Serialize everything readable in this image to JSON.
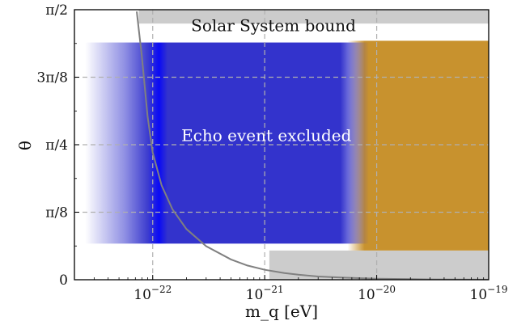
{
  "chart_data": {
    "type": "area",
    "title": "",
    "xlabel": "m_q [eV]",
    "ylabel": "θ",
    "xscale": "log",
    "xlim": [
      2e-23,
      1e-19
    ],
    "ylim": [
      0,
      1.5708
    ],
    "x_ticks": [
      {
        "value": 1e-22,
        "label": "10^-22"
      },
      {
        "value": 1e-21,
        "label": "10^-21"
      },
      {
        "value": 1e-20,
        "label": "10^-20"
      },
      {
        "value": 1e-19,
        "label": "10^-19"
      }
    ],
    "y_ticks": [
      {
        "value": 0,
        "label": "0"
      },
      {
        "value": 0.3927,
        "label": "π/8"
      },
      {
        "value": 0.7854,
        "label": "π/4"
      },
      {
        "value": 1.1781,
        "label": "3π/8"
      },
      {
        "value": 1.5708,
        "label": "π/2"
      }
    ],
    "grid": true,
    "annotations": [
      {
        "text": "Solar System bound",
        "x": 2.2e-22,
        "y": 1.48
      },
      {
        "text": "Echo event excluded",
        "x": 1.8e-22,
        "y": 0.84
      }
    ],
    "regions": [
      {
        "name": "Solar System bound",
        "color": "#cccccc",
        "theta_min": 1.49,
        "m_min": 7.5e-23,
        "m_max": 1e-19
      },
      {
        "name": "Solar System bound (lower)",
        "color": "#cccccc",
        "theta_max": 0.17,
        "m_min": 1.1e-21,
        "m_max": 1e-19
      },
      {
        "name": "Echo event excluded",
        "color": "#3333cc",
        "m_min": 2.5e-23,
        "m_max": 8.5e-21,
        "theta_min": 0.21,
        "theta_max": 1.38
      },
      {
        "name": "orange region",
        "color": "#c8922e",
        "m_min": 5.5e-21,
        "m_max": 1e-19,
        "theta_min": 0.17,
        "theta_max": 1.39
      }
    ],
    "curve": {
      "color": "#808080",
      "x": [
        7.2e-23,
        8e-23,
        9e-23,
        1e-22,
        1.2e-22,
        1.5e-22,
        2e-22,
        3e-22,
        5e-22,
        7e-22,
        1e-21,
        1.5e-21,
        2e-21,
        3e-21,
        5e-21,
        1e-20,
        3e-20,
        1e-19
      ],
      "y": [
        1.56,
        1.3,
        0.95,
        0.74,
        0.55,
        0.41,
        0.295,
        0.195,
        0.118,
        0.083,
        0.058,
        0.039,
        0.029,
        0.019,
        0.012,
        0.006,
        0.002,
        0.0005
      ]
    }
  }
}
